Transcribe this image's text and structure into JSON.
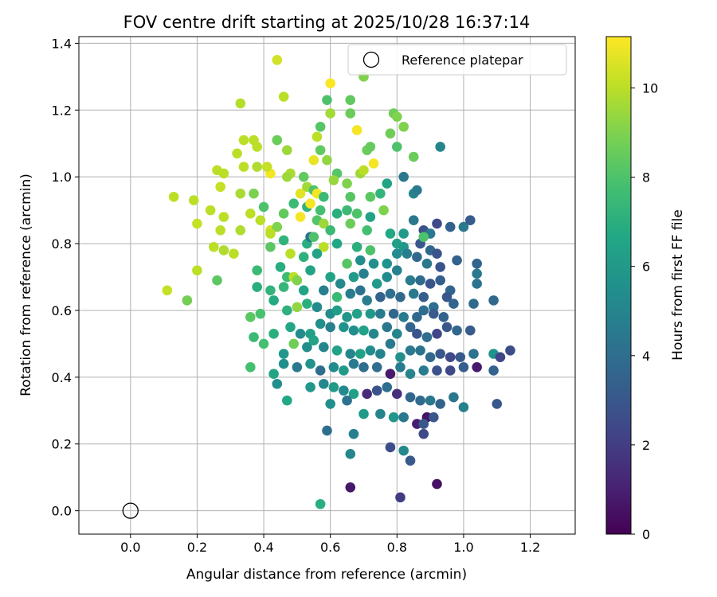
{
  "chart_data": {
    "type": "scatter",
    "title": "FOV centre drift starting at 2025/10/28 16:37:14",
    "xlabel": "Angular distance from reference (arcmin)",
    "ylabel": "Rotation from reference (arcmin)",
    "xlim": [
      -0.155,
      1.335
    ],
    "ylim": [
      -0.07,
      1.42
    ],
    "xticks": [
      0.0,
      0.2,
      0.4,
      0.6,
      0.8,
      1.0,
      1.2
    ],
    "yticks": [
      0.0,
      0.2,
      0.4,
      0.6,
      0.8,
      1.0,
      1.2,
      1.4
    ],
    "grid": true,
    "legend": {
      "placement": "top-right",
      "entries": [
        "Reference platepar"
      ]
    },
    "reference_point": {
      "x": 0.0,
      "y": 0.0,
      "label": "Reference platepar"
    },
    "colorbar": {
      "label": "Hours from first FF file",
      "range": [
        0,
        11.15
      ],
      "ticks": [
        0,
        2,
        4,
        6,
        8,
        10
      ],
      "colormap": "viridis"
    },
    "points": [
      [
        0.44,
        1.35,
        10.4
      ],
      [
        0.6,
        1.28,
        11.1
      ],
      [
        0.7,
        1.3,
        9.0
      ],
      [
        0.46,
        1.24,
        10.0
      ],
      [
        0.33,
        1.22,
        9.9
      ],
      [
        0.59,
        1.23,
        8.0
      ],
      [
        0.66,
        1.23,
        8.4
      ],
      [
        0.79,
        1.19,
        8.7
      ],
      [
        0.8,
        1.18,
        9.0
      ],
      [
        0.6,
        1.19,
        9.6
      ],
      [
        0.57,
        1.15,
        8.2
      ],
      [
        0.66,
        1.19,
        8.6
      ],
      [
        0.78,
        1.13,
        8.7
      ],
      [
        0.68,
        1.14,
        11.0
      ],
      [
        0.82,
        1.15,
        9.0
      ],
      [
        0.34,
        1.11,
        10.0
      ],
      [
        0.37,
        1.11,
        10.0
      ],
      [
        0.44,
        1.11,
        8.6
      ],
      [
        0.56,
        1.12,
        10.0
      ],
      [
        0.57,
        1.08,
        8.4
      ],
      [
        0.71,
        1.08,
        8.6
      ],
      [
        0.72,
        1.09,
        8.5
      ],
      [
        0.8,
        1.09,
        8.0
      ],
      [
        0.85,
        1.06,
        8.6
      ],
      [
        0.93,
        1.09,
        5.0
      ],
      [
        0.32,
        1.07,
        10.0
      ],
      [
        0.38,
        1.09,
        10.0
      ],
      [
        0.47,
        1.08,
        9.5
      ],
      [
        0.55,
        1.05,
        10.8
      ],
      [
        0.59,
        1.05,
        9.3
      ],
      [
        0.34,
        1.03,
        10.0
      ],
      [
        0.38,
        1.03,
        9.8
      ],
      [
        0.42,
        1.01,
        11.0
      ],
      [
        0.48,
        1.01,
        9.7
      ],
      [
        0.62,
        1.01,
        8.2
      ],
      [
        0.69,
        1.01,
        9.5
      ],
      [
        0.7,
        1.02,
        10.0
      ],
      [
        0.73,
        1.04,
        11.0
      ],
      [
        0.82,
        1.0,
        4.5
      ],
      [
        0.26,
        1.02,
        10.0
      ],
      [
        0.28,
        1.01,
        10.0
      ],
      [
        0.41,
        1.03,
        10.2
      ],
      [
        0.47,
        1.0,
        9.5
      ],
      [
        0.52,
        1.0,
        8.4
      ],
      [
        0.61,
        0.99,
        9.4
      ],
      [
        0.65,
        0.98,
        9.0
      ],
      [
        0.77,
        0.98,
        6.5
      ],
      [
        0.13,
        0.94,
        10.0
      ],
      [
        0.19,
        0.93,
        10.0
      ],
      [
        0.27,
        0.97,
        10.2
      ],
      [
        0.33,
        0.95,
        9.7
      ],
      [
        0.37,
        0.95,
        8.9
      ],
      [
        0.51,
        0.95,
        10.7
      ],
      [
        0.53,
        0.97,
        9.6
      ],
      [
        0.55,
        0.96,
        8.0
      ],
      [
        0.56,
        0.95,
        11.0
      ],
      [
        0.58,
        0.94,
        7.5
      ],
      [
        0.66,
        0.94,
        8.2
      ],
      [
        0.72,
        0.94,
        8.3
      ],
      [
        0.75,
        0.95,
        7.3
      ],
      [
        0.85,
        0.95,
        5.0
      ],
      [
        0.86,
        0.96,
        4.5
      ],
      [
        0.24,
        0.9,
        10.0
      ],
      [
        0.4,
        0.91,
        8.0
      ],
      [
        0.39,
        0.87,
        10.0
      ],
      [
        0.46,
        0.89,
        8.4
      ],
      [
        0.49,
        0.92,
        7.5
      ],
      [
        0.53,
        0.91,
        7.2
      ],
      [
        0.54,
        0.92,
        11.0
      ],
      [
        0.57,
        0.9,
        7.8
      ],
      [
        0.62,
        0.89,
        7.0
      ],
      [
        0.65,
        0.9,
        7.5
      ],
      [
        0.68,
        0.89,
        8.0
      ],
      [
        0.72,
        0.88,
        6.4
      ],
      [
        0.76,
        0.9,
        9.0
      ],
      [
        0.2,
        0.86,
        10.2
      ],
      [
        0.28,
        0.88,
        10.0
      ],
      [
        0.36,
        0.89,
        10.0
      ],
      [
        0.42,
        0.84,
        10.4
      ],
      [
        0.44,
        0.85,
        9.0
      ],
      [
        0.51,
        0.88,
        11.0
      ],
      [
        0.56,
        0.87,
        8.1
      ],
      [
        0.58,
        0.86,
        9.5
      ],
      [
        0.6,
        0.84,
        7.5
      ],
      [
        0.66,
        0.86,
        8.6
      ],
      [
        0.71,
        0.84,
        7.8
      ],
      [
        0.78,
        0.83,
        6.7
      ],
      [
        0.82,
        0.83,
        6.0
      ],
      [
        0.85,
        0.87,
        4.4
      ],
      [
        0.88,
        0.84,
        2.8
      ],
      [
        0.9,
        0.83,
        4.5
      ],
      [
        0.92,
        0.86,
        2.4
      ],
      [
        0.96,
        0.85,
        3.4
      ],
      [
        1.0,
        0.85,
        4.5
      ],
      [
        1.02,
        0.87,
        3.2
      ],
      [
        0.27,
        0.84,
        10.0
      ],
      [
        0.33,
        0.84,
        9.8
      ],
      [
        0.42,
        0.83,
        10.0
      ],
      [
        0.46,
        0.81,
        7.2
      ],
      [
        0.53,
        0.8,
        7.0
      ],
      [
        0.54,
        0.82,
        4.0
      ],
      [
        0.55,
        0.82,
        8.0
      ],
      [
        0.58,
        0.79,
        10.0
      ],
      [
        0.62,
        0.8,
        6.6
      ],
      [
        0.68,
        0.79,
        7.0
      ],
      [
        0.72,
        0.78,
        8.0
      ],
      [
        0.8,
        0.8,
        6.3
      ],
      [
        0.82,
        0.79,
        5.9
      ],
      [
        0.87,
        0.8,
        3.0
      ],
      [
        0.88,
        0.82,
        8.0
      ],
      [
        0.9,
        0.78,
        3.7
      ],
      [
        0.92,
        0.77,
        2.9
      ],
      [
        0.25,
        0.79,
        10.0
      ],
      [
        0.28,
        0.78,
        9.8
      ],
      [
        0.31,
        0.77,
        10.0
      ],
      [
        0.42,
        0.79,
        8.3
      ],
      [
        0.48,
        0.77,
        10.0
      ],
      [
        0.52,
        0.76,
        7.1
      ],
      [
        0.56,
        0.77,
        6.5
      ],
      [
        0.65,
        0.74,
        8.2
      ],
      [
        0.69,
        0.75,
        5.4
      ],
      [
        0.73,
        0.74,
        5.5
      ],
      [
        0.77,
        0.74,
        5.6
      ],
      [
        0.8,
        0.77,
        5.4
      ],
      [
        0.83,
        0.77,
        4.7
      ],
      [
        0.86,
        0.76,
        3.8
      ],
      [
        0.89,
        0.74,
        4.4
      ],
      [
        0.93,
        0.73,
        2.9
      ],
      [
        0.98,
        0.75,
        3.5
      ],
      [
        1.04,
        0.74,
        3.6
      ],
      [
        0.2,
        0.72,
        10.0
      ],
      [
        0.26,
        0.69,
        8.3
      ],
      [
        0.38,
        0.72,
        7.5
      ],
      [
        0.45,
        0.73,
        6.9
      ],
      [
        0.47,
        0.7,
        7.6
      ],
      [
        0.49,
        0.7,
        10.0
      ],
      [
        0.54,
        0.72,
        6.4
      ],
      [
        0.6,
        0.7,
        6.4
      ],
      [
        0.63,
        0.68,
        5.2
      ],
      [
        0.67,
        0.7,
        6.0
      ],
      [
        0.7,
        0.71,
        4.8
      ],
      [
        0.74,
        0.68,
        6.0
      ],
      [
        0.77,
        0.7,
        5.3
      ],
      [
        0.8,
        0.72,
        4.8
      ],
      [
        0.84,
        0.69,
        4.6
      ],
      [
        0.87,
        0.69,
        3.9
      ],
      [
        0.9,
        0.68,
        2.9
      ],
      [
        0.93,
        0.69,
        3.3
      ],
      [
        0.96,
        0.66,
        3.6
      ],
      [
        1.04,
        0.68,
        4.3
      ],
      [
        1.04,
        0.71,
        4.5
      ],
      [
        0.11,
        0.66,
        10.2
      ],
      [
        0.17,
        0.63,
        8.8
      ],
      [
        0.38,
        0.67,
        7.0
      ],
      [
        0.42,
        0.66,
        7.2
      ],
      [
        0.46,
        0.67,
        7.3
      ],
      [
        0.5,
        0.69,
        9.0
      ],
      [
        0.52,
        0.66,
        6.5
      ],
      [
        0.58,
        0.66,
        4.8
      ],
      [
        0.62,
        0.64,
        7.5
      ],
      [
        0.66,
        0.65,
        4.6
      ],
      [
        0.69,
        0.66,
        4.2
      ],
      [
        0.71,
        0.63,
        4.7
      ],
      [
        0.75,
        0.64,
        3.5
      ],
      [
        0.78,
        0.65,
        4.1
      ],
      [
        0.81,
        0.64,
        3.8
      ],
      [
        0.85,
        0.65,
        4.5
      ],
      [
        0.88,
        0.64,
        3.3
      ],
      [
        0.91,
        0.61,
        4.0
      ],
      [
        0.95,
        0.64,
        3.0
      ],
      [
        0.97,
        0.62,
        3.6
      ],
      [
        1.03,
        0.62,
        3.9
      ],
      [
        1.09,
        0.63,
        3.8
      ],
      [
        0.36,
        0.58,
        8.3
      ],
      [
        0.39,
        0.59,
        7.9
      ],
      [
        0.43,
        0.63,
        6.8
      ],
      [
        0.47,
        0.6,
        7.1
      ],
      [
        0.5,
        0.61,
        9.3
      ],
      [
        0.53,
        0.62,
        7.0
      ],
      [
        0.56,
        0.61,
        5.3
      ],
      [
        0.6,
        0.59,
        5.4
      ],
      [
        0.62,
        0.6,
        6.2
      ],
      [
        0.65,
        0.58,
        5.8
      ],
      [
        0.68,
        0.59,
        6.3
      ],
      [
        0.72,
        0.59,
        5.9
      ],
      [
        0.75,
        0.59,
        4.5
      ],
      [
        0.79,
        0.59,
        3.7
      ],
      [
        0.82,
        0.58,
        4.6
      ],
      [
        0.86,
        0.58,
        3.7
      ],
      [
        0.88,
        0.6,
        4.0
      ],
      [
        0.91,
        0.59,
        3.2
      ],
      [
        0.94,
        0.58,
        3.5
      ],
      [
        0.43,
        0.53,
        7.0
      ],
      [
        0.48,
        0.55,
        6.6
      ],
      [
        0.51,
        0.53,
        5.3
      ],
      [
        0.54,
        0.53,
        6.3
      ],
      [
        0.57,
        0.56,
        5.5
      ],
      [
        0.6,
        0.55,
        4.8
      ],
      [
        0.64,
        0.55,
        5.6
      ],
      [
        0.67,
        0.54,
        5.5
      ],
      [
        0.7,
        0.54,
        6.4
      ],
      [
        0.73,
        0.53,
        5.1
      ],
      [
        0.77,
        0.55,
        4.4
      ],
      [
        0.8,
        0.53,
        5.0
      ],
      [
        0.84,
        0.55,
        3.6
      ],
      [
        0.86,
        0.53,
        2.9
      ],
      [
        0.89,
        0.52,
        4.0
      ],
      [
        0.92,
        0.53,
        2.3
      ],
      [
        0.95,
        0.55,
        3.0
      ],
      [
        0.98,
        0.54,
        3.7
      ],
      [
        1.02,
        0.54,
        3.2
      ],
      [
        0.37,
        0.52,
        7.5
      ],
      [
        0.4,
        0.5,
        7.8
      ],
      [
        0.46,
        0.47,
        5.8
      ],
      [
        0.49,
        0.5,
        8.7
      ],
      [
        0.53,
        0.49,
        5.4
      ],
      [
        0.55,
        0.51,
        6.4
      ],
      [
        0.58,
        0.49,
        5.0
      ],
      [
        0.62,
        0.48,
        6.4
      ],
      [
        0.66,
        0.47,
        5.1
      ],
      [
        0.69,
        0.47,
        6.3
      ],
      [
        0.72,
        0.48,
        5.4
      ],
      [
        0.75,
        0.47,
        4.9
      ],
      [
        0.78,
        0.5,
        4.5
      ],
      [
        0.81,
        0.46,
        5.5
      ],
      [
        0.84,
        0.48,
        4.5
      ],
      [
        0.87,
        0.48,
        4.3
      ],
      [
        0.9,
        0.46,
        3.8
      ],
      [
        0.93,
        0.47,
        3.0
      ],
      [
        0.96,
        0.46,
        2.5
      ],
      [
        0.99,
        0.46,
        3.1
      ],
      [
        1.03,
        0.47,
        4.2
      ],
      [
        1.09,
        0.47,
        5.6
      ],
      [
        1.11,
        0.46,
        2.3
      ],
      [
        1.14,
        0.48,
        2.6
      ],
      [
        0.36,
        0.43,
        7.8
      ],
      [
        0.43,
        0.41,
        6.5
      ],
      [
        0.46,
        0.44,
        5.5
      ],
      [
        0.5,
        0.43,
        4.5
      ],
      [
        0.54,
        0.44,
        5.6
      ],
      [
        0.57,
        0.42,
        4.0
      ],
      [
        0.61,
        0.43,
        5.3
      ],
      [
        0.64,
        0.42,
        6.0
      ],
      [
        0.67,
        0.44,
        4.5
      ],
      [
        0.7,
        0.43,
        4.0
      ],
      [
        0.74,
        0.43,
        4.0
      ],
      [
        0.78,
        0.41,
        0.8
      ],
      [
        0.81,
        0.43,
        4.6
      ],
      [
        0.84,
        0.41,
        5.0
      ],
      [
        0.88,
        0.42,
        4.6
      ],
      [
        0.92,
        0.42,
        2.8
      ],
      [
        0.96,
        0.42,
        2.4
      ],
      [
        1.0,
        0.43,
        3.3
      ],
      [
        1.04,
        0.43,
        0.8
      ],
      [
        1.09,
        0.42,
        3.5
      ],
      [
        0.44,
        0.38,
        5.5
      ],
      [
        0.47,
        0.33,
        6.7
      ],
      [
        0.54,
        0.37,
        5.9
      ],
      [
        0.58,
        0.38,
        5.1
      ],
      [
        0.61,
        0.37,
        6.0
      ],
      [
        0.64,
        0.36,
        5.2
      ],
      [
        0.67,
        0.35,
        6.3
      ],
      [
        0.71,
        0.35,
        1.4
      ],
      [
        0.74,
        0.36,
        2.9
      ],
      [
        0.77,
        0.37,
        4.0
      ],
      [
        0.8,
        0.35,
        1.5
      ],
      [
        0.84,
        0.34,
        3.7
      ],
      [
        0.87,
        0.33,
        3.9
      ],
      [
        0.9,
        0.33,
        4.4
      ],
      [
        0.93,
        0.32,
        3.5
      ],
      [
        0.97,
        0.34,
        4.4
      ],
      [
        1.0,
        0.31,
        4.8
      ],
      [
        1.1,
        0.32,
        3.0
      ],
      [
        0.6,
        0.32,
        5.5
      ],
      [
        0.65,
        0.33,
        4.2
      ],
      [
        0.7,
        0.29,
        6.0
      ],
      [
        0.75,
        0.29,
        5.0
      ],
      [
        0.79,
        0.28,
        5.8
      ],
      [
        0.82,
        0.28,
        4.4
      ],
      [
        0.86,
        0.26,
        0.9
      ],
      [
        0.89,
        0.28,
        0.6
      ],
      [
        0.91,
        0.28,
        3.0
      ],
      [
        0.88,
        0.23,
        2.4
      ],
      [
        0.59,
        0.24,
        4.0
      ],
      [
        0.67,
        0.23,
        4.8
      ],
      [
        0.78,
        0.19,
        2.6
      ],
      [
        0.82,
        0.18,
        5.2
      ],
      [
        0.84,
        0.15,
        3.1
      ],
      [
        0.66,
        0.17,
        5.1
      ],
      [
        0.81,
        0.04,
        2.0
      ],
      [
        0.66,
        0.07,
        0.7
      ],
      [
        0.92,
        0.08,
        0.5
      ],
      [
        0.57,
        0.02,
        7.0
      ],
      [
        0.88,
        0.26,
        3.0
      ]
    ]
  }
}
